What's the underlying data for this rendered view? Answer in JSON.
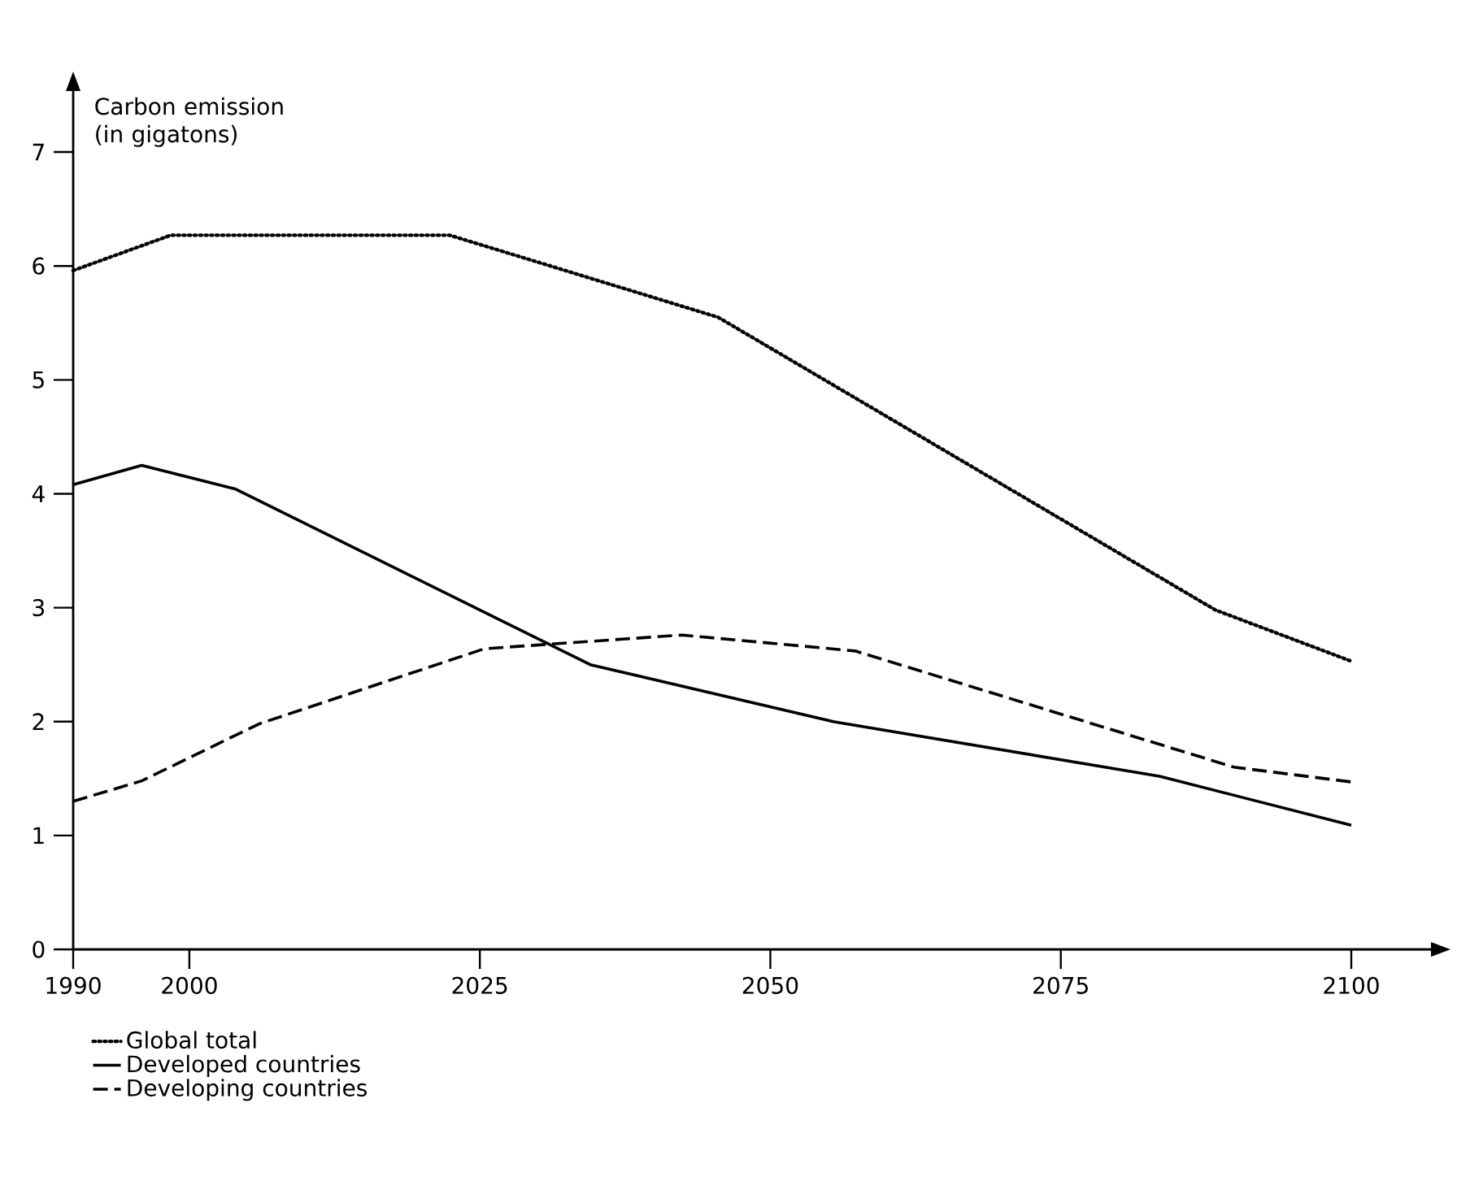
{
  "chart_data": {
    "type": "line",
    "ylabel": "Carbon emission (in gigatons)",
    "xlim": [
      1990,
      2107
    ],
    "ylim": [
      0,
      7.55
    ],
    "xticks": [
      1990,
      2000,
      2025,
      2050,
      2075,
      2100
    ],
    "yticks": [
      0,
      1,
      2,
      3,
      4,
      5,
      6,
      7
    ],
    "grid": false,
    "legend": "bottom left",
    "marker": "none",
    "series": [
      {
        "name": "Global total",
        "color": "#000000",
        "line_style": "dotted",
        "x": [
          1990,
          1998.4,
          2022.4,
          2045.5,
          2088.3,
          2100
        ],
        "values": [
          5.96,
          6.27,
          6.27,
          5.55,
          2.98,
          2.53
        ]
      },
      {
        "name": "Developed countries",
        "color": "#000000",
        "line_style": "solid",
        "x": [
          1990,
          1995.9,
          2004,
          2034.5,
          2055.4,
          2083.5,
          2100
        ],
        "values": [
          4.08,
          4.25,
          4.04,
          2.5,
          2.0,
          1.52,
          1.09
        ]
      },
      {
        "name": "Developing countries",
        "color": "#000000",
        "line_style": "dashed",
        "x": [
          1990,
          1995.9,
          2006,
          2025.4,
          2042.4,
          2057.3,
          2089.9,
          2100
        ],
        "values": [
          1.3,
          1.48,
          1.98,
          2.64,
          2.76,
          2.62,
          1.6,
          1.47
        ]
      }
    ]
  }
}
